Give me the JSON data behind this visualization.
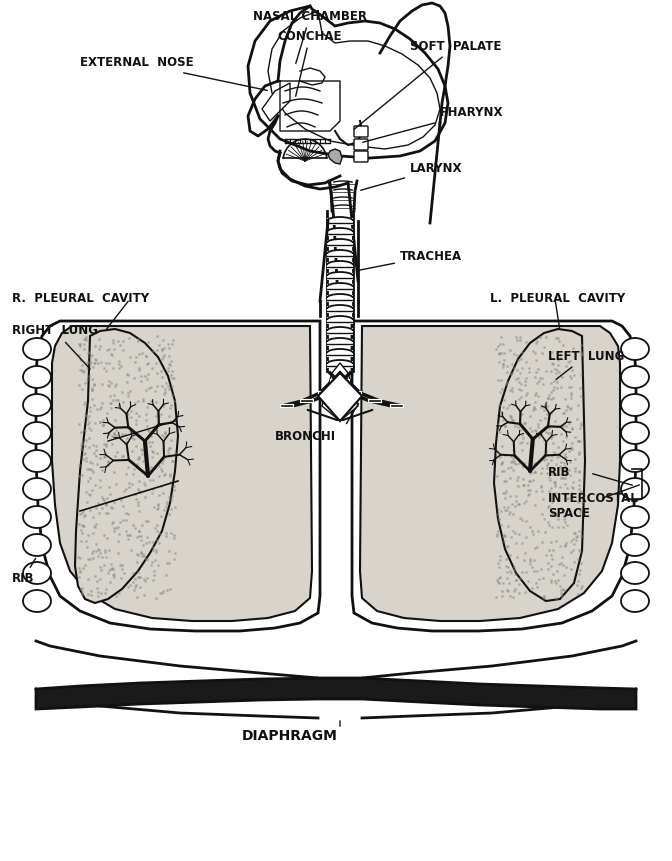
{
  "bg_color": "#ffffff",
  "line_color": "#111111",
  "lung_fill": "#d8d4cc",
  "labels": {
    "nasal_chamber": "NASAL CHAMBER",
    "conchae": "CONCHAE",
    "soft_palate": "SOFT  PALATE",
    "external_nose": "EXTERNAL  NOSE",
    "pharynx": "PHARYNX",
    "larynx": "LARYNX",
    "trachea": "TRACHEA",
    "r_pleural": "R.  PLEURAL  CAVITY",
    "l_pleural": "L.  PLEURAL  CAVITY",
    "right_lung": "RIGHT  LUNG",
    "left_lung": "LEFT  LUNG",
    "bronchi": "BRONCHI",
    "rib_left": "RIB",
    "rib_right": "RIB",
    "intercostal": "INTERCOSTAL\nSPACE",
    "diaphragm": "DIAPHRAGM"
  },
  "figsize": [
    6.72,
    8.61
  ],
  "dpi": 100
}
